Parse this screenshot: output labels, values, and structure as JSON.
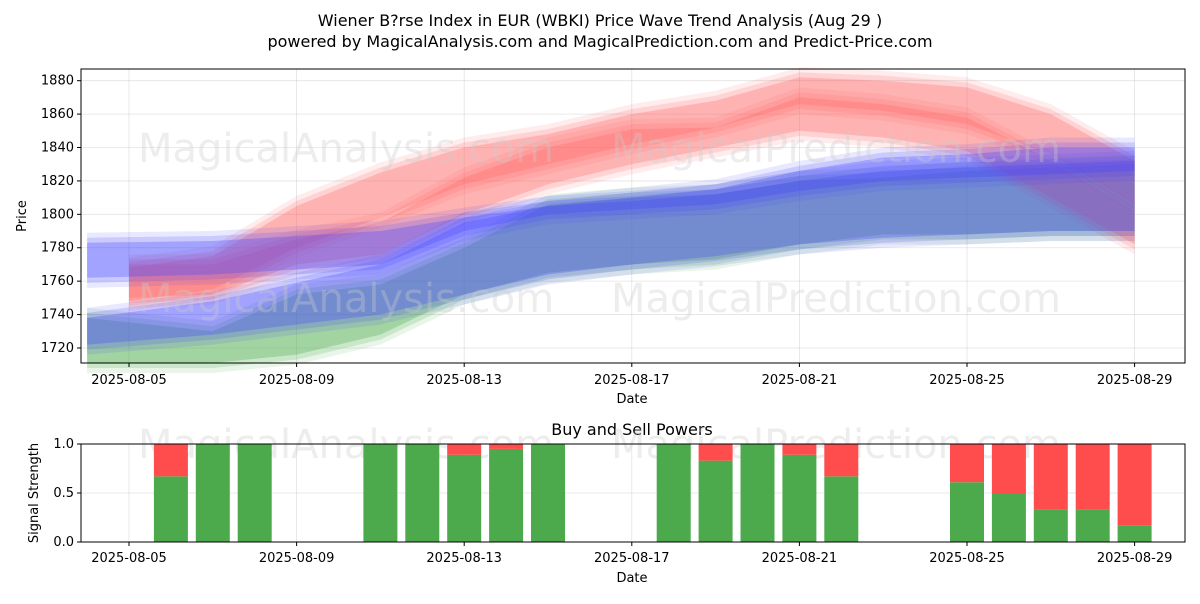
{
  "title_line1": "Wiener B?rse Index in EUR (WBKI) Price Wave Trend Analysis (Aug 29 )",
  "title_line2": "powered by MagicalAnalysis.com and MagicalPrediction.com and Predict-Price.com",
  "watermarks": [
    "MagicalAnalysis.com",
    "MagicalPrediction.com"
  ],
  "colors": {
    "red_band": "#ff6666",
    "blue_band": "#4444ff",
    "green_band": "#44aa44",
    "buy": "#4caa4c",
    "sell": "#ff4c4c"
  },
  "chart_data": [
    {
      "type": "area",
      "xlabel": "Date",
      "ylabel": "Price",
      "ylim": [
        1711,
        1887
      ],
      "xlim": [
        "2025-08-04",
        "2025-08-30"
      ],
      "yticks": [
        1720,
        1740,
        1760,
        1780,
        1800,
        1820,
        1840,
        1860,
        1880
      ],
      "xticks": [
        "2025-08-05",
        "2025-08-09",
        "2025-08-13",
        "2025-08-17",
        "2025-08-21",
        "2025-08-25",
        "2025-08-29"
      ],
      "grid": true,
      "series": [
        {
          "color": "red",
          "bands": [
            {
              "x": [
                "2025-08-05",
                "2025-08-07",
                "2025-08-09",
                "2025-08-11",
                "2025-08-13",
                "2025-08-15",
                "2025-08-17",
                "2025-08-19",
                "2025-08-21",
                "2025-08-23",
                "2025-08-25",
                "2025-08-27",
                "2025-08-29"
              ],
              "upper": [
                1770,
                1770,
                1785,
                1795,
                1822,
                1840,
                1851,
                1852,
                1870,
                1866,
                1858,
                1832,
                1802
              ],
              "lower": [
                1750,
                1752,
                1770,
                1776,
                1800,
                1818,
                1830,
                1840,
                1850,
                1846,
                1838,
                1810,
                1782
              ]
            },
            {
              "x": [
                "2025-08-05",
                "2025-08-07",
                "2025-08-09",
                "2025-08-11",
                "2025-08-13",
                "2025-08-15",
                "2025-08-17",
                "2025-08-19",
                "2025-08-21",
                "2025-08-23",
                "2025-08-25",
                "2025-08-27",
                "2025-08-29"
              ],
              "upper": [
                1768,
                1775,
                1805,
                1825,
                1840,
                1848,
                1860,
                1868,
                1882,
                1880,
                1876,
                1860,
                1832
              ],
              "lower": [
                1748,
                1755,
                1780,
                1798,
                1818,
                1830,
                1842,
                1852,
                1866,
                1862,
                1854,
                1836,
                1806
              ]
            }
          ]
        },
        {
          "color": "blue",
          "bands": [
            {
              "x": [
                "2025-08-04",
                "2025-08-07",
                "2025-08-11",
                "2025-08-13",
                "2025-08-15",
                "2025-08-17",
                "2025-08-19",
                "2025-08-21",
                "2025-08-23",
                "2025-08-25",
                "2025-08-27",
                "2025-08-29"
              ],
              "upper": [
                1783,
                1784,
                1790,
                1798,
                1805,
                1808,
                1812,
                1820,
                1826,
                1828,
                1830,
                1832
              ],
              "lower": [
                1762,
                1764,
                1770,
                1790,
                1800,
                1803,
                1806,
                1814,
                1820,
                1822,
                1824,
                1826
              ]
            },
            {
              "x": [
                "2025-08-04",
                "2025-08-07",
                "2025-08-11",
                "2025-08-13",
                "2025-08-15",
                "2025-08-17",
                "2025-08-19",
                "2025-08-21",
                "2025-08-23",
                "2025-08-25",
                "2025-08-27",
                "2025-08-29"
              ],
              "upper": [
                1738,
                1748,
                1770,
                1795,
                1805,
                1810,
                1815,
                1826,
                1834,
                1836,
                1840,
                1840
              ],
              "lower": [
                1722,
                1728,
                1740,
                1752,
                1764,
                1770,
                1775,
                1782,
                1786,
                1788,
                1790,
                1790
              ]
            }
          ]
        },
        {
          "color": "green",
          "bands": [
            {
              "x": [
                "2025-08-04",
                "2025-08-07",
                "2025-08-09",
                "2025-08-11",
                "2025-08-13",
                "2025-08-15",
                "2025-08-17",
                "2025-08-19",
                "2025-08-21",
                "2025-08-23",
                "2025-08-25",
                "2025-08-27",
                "2025-08-29"
              ],
              "upper": [
                1738,
                1730,
                1752,
                1758,
                1780,
                1806,
                1810,
                1812,
                1820,
                1822,
                1826,
                1828,
                1830
              ],
              "lower": [
                1711,
                1711,
                1716,
                1728,
                1752,
                1765,
                1770,
                1773,
                1782,
                1788,
                1788,
                1790,
                1790
              ]
            }
          ]
        }
      ]
    },
    {
      "type": "bar",
      "title": "Buy and Sell Powers",
      "xlabel": "Date",
      "ylabel": "Signal Strength",
      "ylim": [
        0,
        1
      ],
      "yticks": [
        0.0,
        0.5,
        1.0
      ],
      "xticks": [
        "2025-08-05",
        "2025-08-09",
        "2025-08-13",
        "2025-08-17",
        "2025-08-21",
        "2025-08-25",
        "2025-08-29"
      ],
      "categories": [
        "2025-08-06",
        "2025-08-07",
        "2025-08-08",
        "2025-08-11",
        "2025-08-12",
        "2025-08-13",
        "2025-08-14",
        "2025-08-15",
        "2025-08-18",
        "2025-08-19",
        "2025-08-20",
        "2025-08-21",
        "2025-08-22",
        "2025-08-25",
        "2025-08-26",
        "2025-08-27",
        "2025-08-28",
        "2025-08-29"
      ],
      "series": [
        {
          "name": "Buy",
          "values": [
            0.67,
            1.0,
            1.0,
            1.0,
            1.0,
            0.89,
            0.95,
            1.0,
            1.0,
            0.83,
            1.0,
            0.89,
            0.67,
            0.61,
            0.5,
            0.33,
            0.33,
            0.17
          ]
        },
        {
          "name": "Sell",
          "values": [
            0.33,
            0.0,
            0.0,
            0.0,
            0.0,
            0.11,
            0.05,
            0.0,
            0.0,
            0.17,
            0.0,
            0.11,
            0.33,
            0.39,
            0.5,
            0.67,
            0.67,
            0.83
          ]
        }
      ]
    }
  ]
}
